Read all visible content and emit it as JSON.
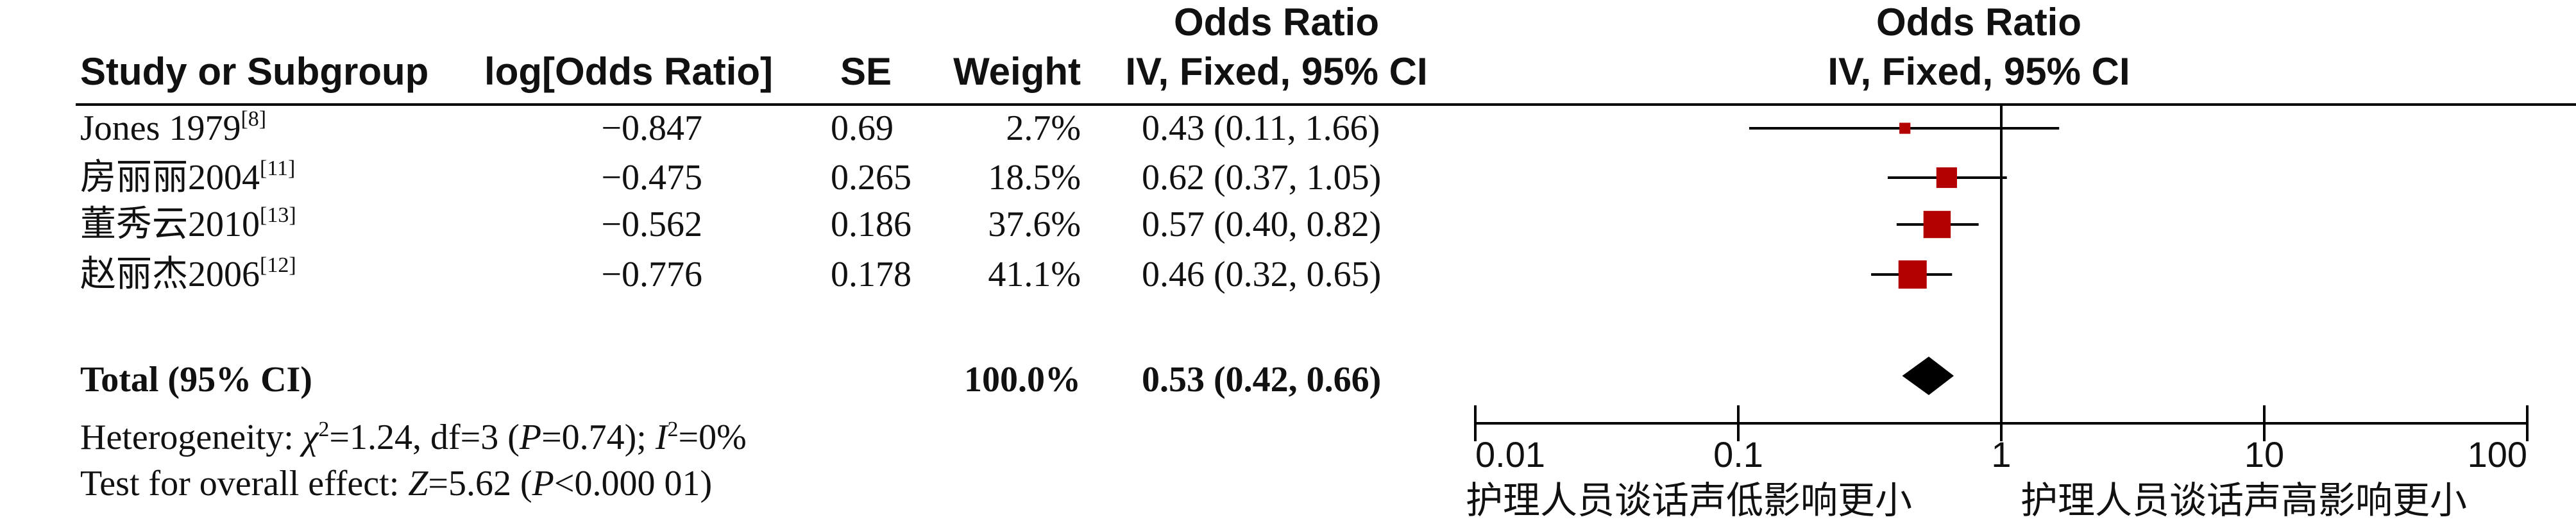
{
  "headers": {
    "study": "Study or Subgroup",
    "log_or": "log[Odds Ratio]",
    "se": "SE",
    "weight": "Weight",
    "or_top": "Odds Ratio",
    "or_bottom": "IV, Fixed, 95% CI",
    "plot_top": "Odds Ratio",
    "plot_bottom": "IV, Fixed, 95% CI"
  },
  "total": {
    "label": "Total (95% CI)",
    "weight": "100.0%",
    "ci_text": "0.53 (0.42, 0.66)"
  },
  "heterogeneity": {
    "prefix": "Heterogeneity: ",
    "chi": "χ",
    "chi_sup": "2",
    "chi_val": "=1.24, df=3 (",
    "p": "P",
    "p_val": "=0.74); ",
    "i": "I",
    "i_sup": "2",
    "i_val": "=0%"
  },
  "overall": {
    "prefix": "Test for overall effect: ",
    "z": "Z",
    "z_val": "=5.62 (",
    "p": "P",
    "p_val": "<0.000 01)"
  },
  "axis": {
    "favours_left": "护理人员谈话声低影响更小",
    "favours_right": "护理人员谈话声高影响更小"
  },
  "colors": {
    "study_marker": "#b30000",
    "diamond": "#000000",
    "lines": "#000000"
  },
  "chart_data": {
    "type": "forest",
    "x_scale": "log",
    "xlim": [
      0.01,
      100
    ],
    "x_ticks": [
      0.01,
      0.1,
      1,
      10,
      100
    ],
    "x_tick_labels": [
      "0.01",
      "0.1",
      "1",
      "10",
      "100"
    ],
    "null_line": 1,
    "studies": [
      {
        "name": "Jones 1979",
        "ref": "[8]",
        "log_or": "−0.847",
        "se": "0.69",
        "weight": "2.7%",
        "ci_text": "0.43 (0.11, 1.66)",
        "or": 0.43,
        "lo": 0.11,
        "hi": 1.66,
        "w": 2.7
      },
      {
        "name": "房丽丽2004",
        "ref": "[11]",
        "log_or": "−0.475",
        "se": "0.265",
        "weight": "18.5%",
        "ci_text": "0.62 (0.37, 1.05)",
        "or": 0.62,
        "lo": 0.37,
        "hi": 1.05,
        "w": 18.5
      },
      {
        "name": "董秀云2010",
        "ref": "[13]",
        "log_or": "−0.562",
        "se": "0.186",
        "weight": "37.6%",
        "ci_text": "0.57 (0.40, 0.82)",
        "or": 0.57,
        "lo": 0.4,
        "hi": 0.82,
        "w": 37.6
      },
      {
        "name": "赵丽杰2006",
        "ref": "[12]",
        "log_or": "−0.776",
        "se": "0.178",
        "weight": "41.1%",
        "ci_text": "0.46 (0.32, 0.65)",
        "or": 0.46,
        "lo": 0.32,
        "hi": 0.65,
        "w": 41.1
      }
    ],
    "pooled": {
      "or": 0.53,
      "lo": 0.42,
      "hi": 0.66
    }
  }
}
